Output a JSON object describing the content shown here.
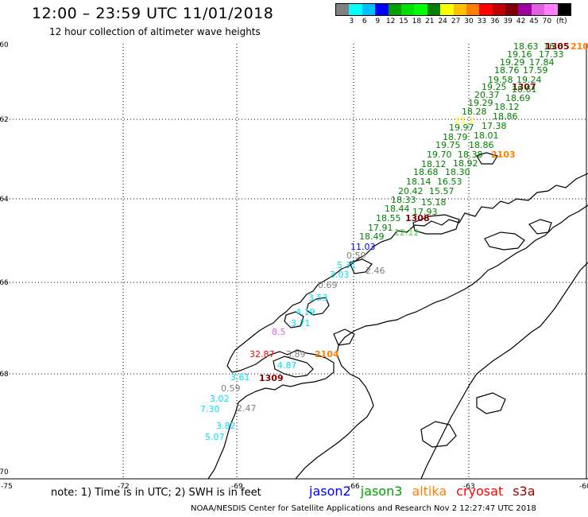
{
  "title": "12:00 – 23:59 UTC 11/01/2018",
  "subtitle": "12 hour collection of altimeter wave heights",
  "legend": {
    "unit": "(ft)",
    "colors": [
      "#808080",
      "#00ffff",
      "#00c0ff",
      "#0000ff",
      "#00a000",
      "#00e000",
      "#00ff00",
      "#008000",
      "#ffff00",
      "#ffc000",
      "#ff8000",
      "#ff0000",
      "#c00000",
      "#800000",
      "#a000a0",
      "#e060e0",
      "#ff80ff",
      "#000000"
    ],
    "labels": [
      "3",
      "6",
      "9",
      "12",
      "15",
      "18",
      "21",
      "24",
      "27",
      "30",
      "33",
      "36",
      "39",
      "42",
      "45",
      "70"
    ]
  },
  "axes": {
    "lat_labels": [
      "-60",
      "-62",
      "-64",
      "-66",
      "-68",
      "-70"
    ],
    "lon_labels": [
      "-75",
      "-72",
      "-69",
      "-66",
      "-63",
      "-60"
    ]
  },
  "observations": [
    {
      "v": "18.63",
      "c": "#008000"
    },
    {
      "v": "16.8",
      "c": "#008000"
    },
    {
      "v": "1305",
      "c": "#800000"
    },
    {
      "v": "210",
      "c": "#ff8000"
    },
    {
      "v": "19.16",
      "c": "#008000"
    },
    {
      "v": "17.33",
      "c": "#008000"
    },
    {
      "v": "19.29",
      "c": "#008000"
    },
    {
      "v": "17.84",
      "c": "#008000"
    },
    {
      "v": "18.76",
      "c": "#008000"
    },
    {
      "v": "17.59",
      "c": "#008000"
    },
    {
      "v": "19.58",
      "c": "#008000"
    },
    {
      "v": "19.24",
      "c": "#008000"
    },
    {
      "v": "19.25",
      "c": "#008000"
    },
    {
      "v": "1307",
      "c": "#800000"
    },
    {
      "v": "18.61",
      "c": "#008000"
    },
    {
      "v": "20.37",
      "c": "#008000"
    },
    {
      "v": "18.69",
      "c": "#008000"
    },
    {
      "v": "19.29",
      "c": "#008000"
    },
    {
      "v": "18.12",
      "c": "#008000"
    },
    {
      "v": "18.28",
      "c": "#008000"
    },
    {
      "v": "18.86",
      "c": "#008000"
    },
    {
      "v": "21.1",
      "c": "#ffff00"
    },
    {
      "v": "17.38",
      "c": "#008000"
    },
    {
      "v": "19.97",
      "c": "#008000"
    },
    {
      "v": "18.01",
      "c": "#008000"
    },
    {
      "v": "18.79",
      "c": "#008000"
    },
    {
      "v": "18.86",
      "c": "#008000"
    },
    {
      "v": "19.75",
      "c": "#008000"
    },
    {
      "v": "19.70",
      "c": "#008000"
    },
    {
      "v": "18.38",
      "c": "#008000"
    },
    {
      "v": "2103",
      "c": "#ff8000"
    },
    {
      "v": "18.12",
      "c": "#008000"
    },
    {
      "v": "18.92",
      "c": "#008000"
    },
    {
      "v": "18.68",
      "c": "#008000"
    },
    {
      "v": "18.30",
      "c": "#008000"
    },
    {
      "v": "18.14",
      "c": "#008000"
    },
    {
      "v": "16.53",
      "c": "#008000"
    },
    {
      "v": "20.42",
      "c": "#008000"
    },
    {
      "v": "15.57",
      "c": "#008000"
    },
    {
      "v": "18.33",
      "c": "#008000"
    },
    {
      "v": "15.18",
      "c": "#008000"
    },
    {
      "v": "18.44",
      "c": "#008000"
    },
    {
      "v": "17.93",
      "c": "#008000"
    },
    {
      "v": "18.55",
      "c": "#008000"
    },
    {
      "v": "1308",
      "c": "#800000"
    },
    {
      "v": "17.91",
      "c": "#008000"
    },
    {
      "v": "12.12",
      "c": "#40e040"
    },
    {
      "v": "18.49",
      "c": "#008000"
    },
    {
      "v": "11.03",
      "c": "#0000ff"
    },
    {
      "v": "0.59",
      "c": "#808080"
    },
    {
      "v": "5.31",
      "c": "#00e0ff"
    },
    {
      "v": "2.46",
      "c": "#808080"
    },
    {
      "v": "3.03",
      "c": "#00e0ff"
    },
    {
      "v": "0.69",
      "c": "#808080"
    },
    {
      "v": "3.53",
      "c": "#00e0ff"
    },
    {
      "v": "4.19",
      "c": "#00e0ff"
    },
    {
      "v": "3.71",
      "c": "#00e0ff"
    },
    {
      "v": "8.5",
      "c": "#e060e0"
    },
    {
      "v": "32.87",
      "c": "#ff0000"
    },
    {
      "v": "3.89",
      "c": "#808080"
    },
    {
      "v": "2104",
      "c": "#ff8000"
    },
    {
      "v": "4.87",
      "c": "#00e0ff"
    },
    {
      "v": "3.61",
      "c": "#00e0ff"
    },
    {
      "v": "1309",
      "c": "#800000"
    },
    {
      "v": "0.59",
      "c": "#808080"
    },
    {
      "v": "3.02",
      "c": "#00e0ff"
    },
    {
      "v": "7.30",
      "c": "#00e0ff"
    },
    {
      "v": "2.47",
      "c": "#808080"
    },
    {
      "v": "3.82",
      "c": "#00e0ff"
    },
    {
      "v": "5.07",
      "c": "#00e0ff"
    }
  ],
  "note": "note: 1) Time is in UTC; 2) SWH is in feet",
  "satellites": [
    {
      "name": "jason2",
      "color": "#0000ff"
    },
    {
      "name": "jason3",
      "color": "#00a000"
    },
    {
      "name": "altika",
      "color": "#ff8000"
    },
    {
      "name": "cryosat",
      "color": "#ff0000"
    },
    {
      "name": "s3a",
      "color": "#a00000"
    }
  ],
  "credit": "NOAA/NESDIS Center for Satellite Applications and Research    Nov  2 12:27:47 UTC 2018"
}
